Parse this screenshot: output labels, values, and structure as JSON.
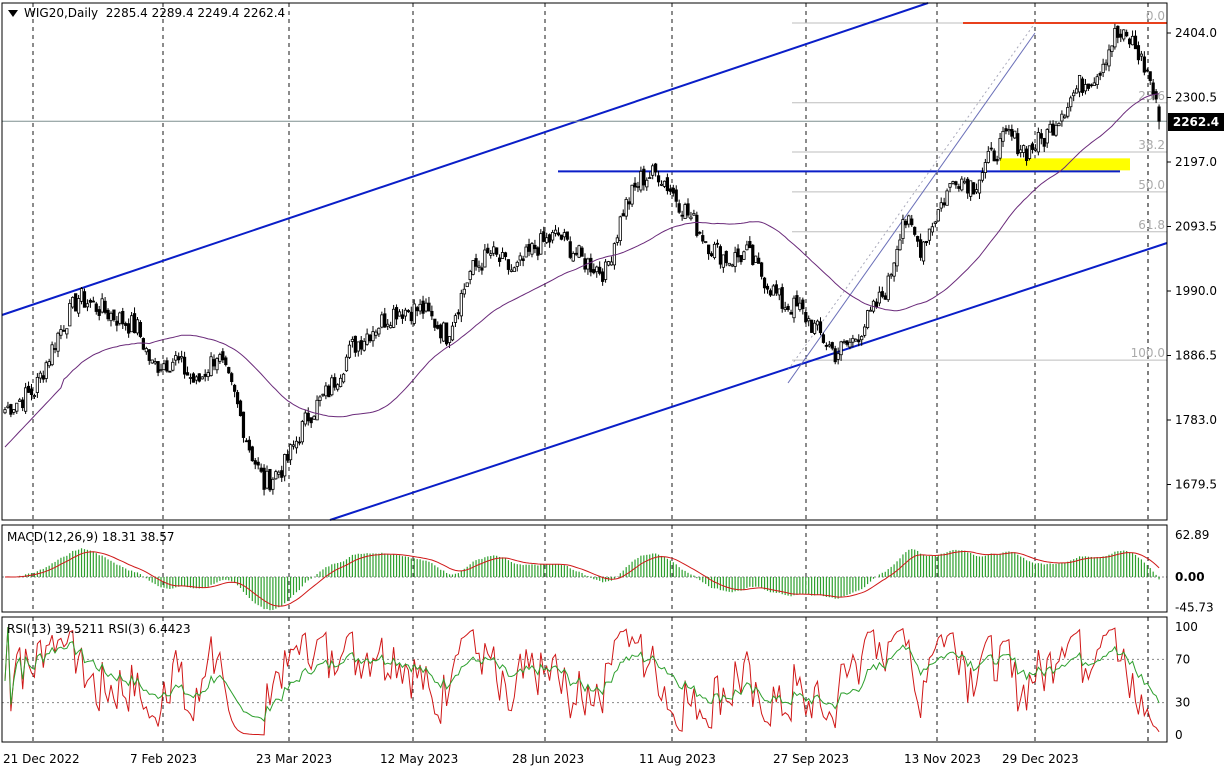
{
  "header": {
    "symbol": "WIG20,Daily",
    "ohlc": "2285.4 2289.4 2249.4 2262.4"
  },
  "last_price": "2262.4",
  "colors": {
    "channel": "#0a1ec8",
    "resistance": "#e8401c",
    "highlight": "#ffff00",
    "ma": "#6a2a7a",
    "macd_hist": "#2ea02e",
    "macd_signal": "#d01818",
    "rsi_fast": "#d01818",
    "rsi_slow": "#2ea02e",
    "fib": "#bdbdbd"
  },
  "chart_data": [
    {
      "type": "candlestick",
      "instrument": "WIG20",
      "timeframe": "Daily",
      "y_ticks": [
        "2404.0",
        "2300.5",
        "2197.0",
        "2093.5",
        "1990.0",
        "1886.5",
        "1783.0",
        "1679.5"
      ],
      "ylim": [
        1625,
        2450
      ],
      "x_labels": [
        "21 Dec 2022",
        "7 Feb 2023",
        "23 Mar 2023",
        "12 May 2023",
        "28 Jun 2023",
        "11 Aug 2023",
        "27 Sep 2023",
        "13 Nov 2023",
        "29 Dec 2023"
      ],
      "close_path": [
        [
          0,
          1800
        ],
        [
          10,
          1830
        ],
        [
          18,
          1920
        ],
        [
          25,
          1980
        ],
        [
          35,
          1955
        ],
        [
          45,
          1930
        ],
        [
          50,
          1870
        ],
        [
          58,
          1880
        ],
        [
          65,
          1840
        ],
        [
          72,
          1890
        ],
        [
          78,
          1820
        ],
        [
          83,
          1740
        ],
        [
          88,
          1680
        ],
        [
          95,
          1710
        ],
        [
          103,
          1790
        ],
        [
          110,
          1830
        ],
        [
          118,
          1900
        ],
        [
          125,
          1930
        ],
        [
          133,
          1960
        ],
        [
          142,
          1960
        ],
        [
          150,
          1920
        ],
        [
          158,
          2020
        ],
        [
          165,
          2050
        ],
        [
          173,
          2020
        ],
        [
          180,
          2060
        ],
        [
          188,
          2080
        ],
        [
          196,
          2040
        ],
        [
          204,
          2020
        ],
        [
          210,
          2120
        ],
        [
          216,
          2170
        ],
        [
          222,
          2180
        ],
        [
          228,
          2140
        ],
        [
          234,
          2100
        ],
        [
          240,
          2060
        ],
        [
          246,
          2040
        ],
        [
          252,
          2050
        ],
        [
          258,
          2010
        ],
        [
          264,
          1970
        ],
        [
          270,
          1960
        ],
        [
          276,
          1925
        ],
        [
          282,
          1890
        ],
        [
          288,
          1910
        ],
        [
          294,
          1950
        ],
        [
          300,
          2000
        ],
        [
          305,
          2110
        ],
        [
          311,
          2060
        ],
        [
          317,
          2120
        ],
        [
          323,
          2175
        ],
        [
          329,
          2160
        ],
        [
          335,
          2205
        ],
        [
          341,
          2240
        ],
        [
          347,
          2215
        ],
        [
          353,
          2235
        ],
        [
          359,
          2280
        ],
        [
          365,
          2320
        ],
        [
          371,
          2340
        ],
        [
          377,
          2400
        ],
        [
          383,
          2390
        ],
        [
          389,
          2330
        ],
        [
          392,
          2262.4
        ]
      ],
      "last_ohlc": {
        "open": 2285.4,
        "high": 2289.4,
        "low": 2249.4,
        "close": 2262.4
      },
      "fibonacci": [
        {
          "label": "0.0",
          "value": 2420
        },
        {
          "label": "23.6",
          "value": 2292
        },
        {
          "label": "38.2",
          "value": 2213
        },
        {
          "label": "50.0",
          "value": 2149
        },
        {
          "label": "61.8",
          "value": 2085
        },
        {
          "label": "100.0",
          "value": 1879
        }
      ],
      "resistance_level": 2420,
      "support_level": 2182
    },
    {
      "type": "line",
      "indicator": "MACD",
      "label": "MACD(12,26,9) 18.31 38.57",
      "y_ticks": [
        "62.89",
        "0.00",
        "-45.73"
      ]
    },
    {
      "type": "line",
      "indicator": "RSI",
      "label": "RSI(13) 39.5211  RSI(3) 6.4423",
      "y_ticks": [
        "100",
        "70",
        "30",
        "0"
      ]
    }
  ]
}
